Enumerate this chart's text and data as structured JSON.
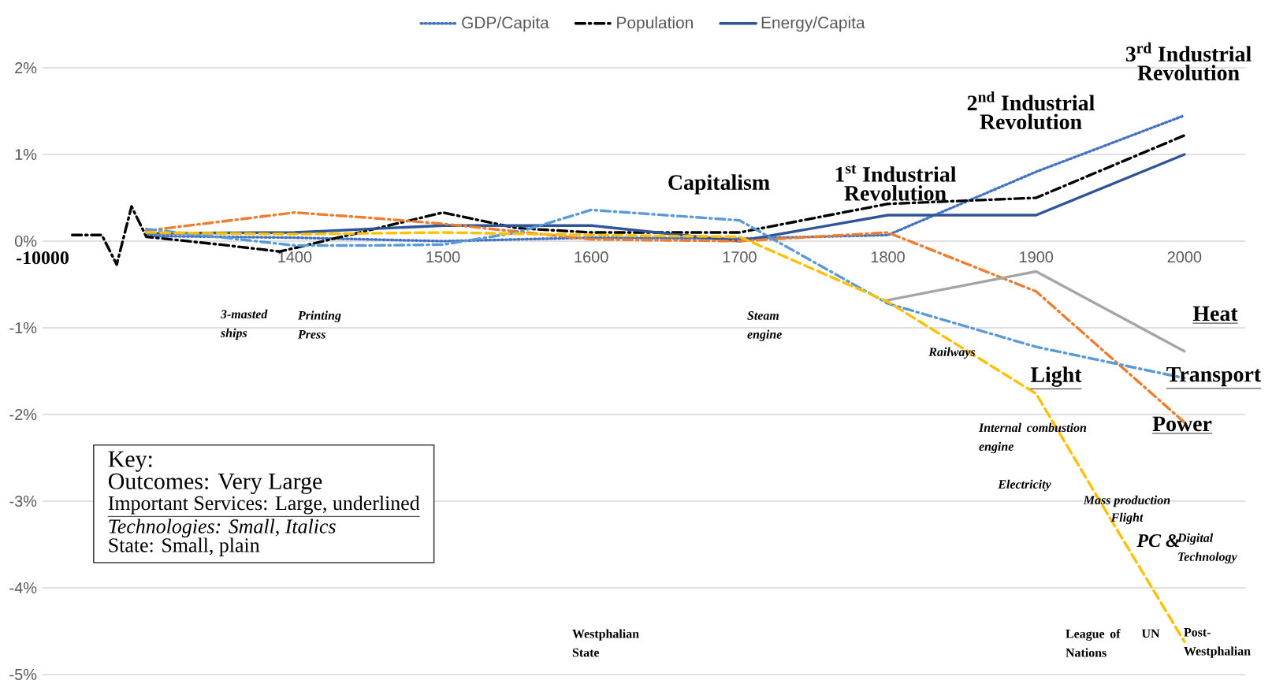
{
  "chart_data": {
    "type": "line",
    "categories": [
      "-10000",
      null,
      null,
      null,
      null,
      null,
      null,
      null,
      null,
      null,
      null,
      null,
      null,
      null,
      null,
      null,
      null,
      "1400",
      null,
      null,
      null,
      null,
      null,
      null,
      null,
      null,
      null,
      "1500",
      null,
      null,
      null,
      null,
      null,
      null,
      null,
      null,
      null,
      "1600",
      null,
      null,
      null,
      null,
      null,
      null,
      null,
      null,
      null,
      "1700",
      null,
      null,
      null,
      null,
      null,
      null,
      null,
      null,
      null,
      "1800",
      null,
      null,
      null,
      null,
      null,
      null,
      null,
      null,
      null,
      "1900",
      null,
      null,
      null,
      null,
      null,
      null,
      null,
      null,
      null,
      "2000"
    ],
    "ylim": [
      -5,
      2
    ],
    "yticks": [
      {
        "value": -5,
        "label": "-5%"
      },
      {
        "value": -4,
        "label": "-4%"
      },
      {
        "value": -3,
        "label": "-3%"
      },
      {
        "value": -2,
        "label": "-2%"
      },
      {
        "value": -1,
        "label": "-1%"
      },
      {
        "value": 0,
        "label": "0%"
      },
      {
        "value": 1,
        "label": "1%"
      },
      {
        "value": 2,
        "label": "2%"
      }
    ],
    "grid": "y",
    "legend": "top",
    "series": [
      {
        "name": "GDP/Capita",
        "color": "#4472c4",
        "line_style": "dotted",
        "values": [
          null,
          null,
          null,
          null,
          null,
          null,
          null,
          0.06,
          null,
          null,
          null,
          null,
          null,
          null,
          null,
          null,
          null,
          0.04,
          null,
          null,
          null,
          null,
          null,
          null,
          null,
          null,
          null,
          0.0,
          null,
          null,
          null,
          null,
          null,
          null,
          null,
          null,
          null,
          0.04,
          null,
          null,
          null,
          null,
          null,
          null,
          null,
          null,
          null,
          0.03,
          null,
          null,
          null,
          null,
          null,
          null,
          null,
          null,
          null,
          0.07,
          null,
          null,
          null,
          null,
          null,
          null,
          null,
          null,
          null,
          0.8,
          null,
          null,
          null,
          null,
          null,
          null,
          null,
          null,
          null,
          1.45
        ]
      },
      {
        "name": "Population",
        "color": "#000000",
        "line_style": "dashdot",
        "values": [
          null,
          null,
          0.07,
          null,
          0.07,
          -0.27,
          0.4,
          0.05,
          null,
          null,
          null,
          null,
          -0.04,
          null,
          null,
          null,
          -0.12,
          null,
          null,
          null,
          null,
          null,
          null,
          null,
          null,
          null,
          null,
          0.33,
          null,
          null,
          null,
          null,
          0.15,
          null,
          null,
          null,
          null,
          0.1,
          null,
          null,
          null,
          null,
          null,
          null,
          null,
          null,
          null,
          0.1,
          null,
          null,
          null,
          null,
          null,
          null,
          null,
          null,
          null,
          0.43,
          null,
          null,
          null,
          null,
          null,
          null,
          null,
          null,
          null,
          0.5,
          null,
          null,
          null,
          null,
          null,
          null,
          null,
          null,
          null,
          1.22
        ]
      },
      {
        "name": "Energy/Capita",
        "color": "#2f5597",
        "line_style": "solid",
        "values": [
          null,
          null,
          null,
          null,
          null,
          null,
          null,
          0.09,
          null,
          null,
          null,
          null,
          null,
          null,
          null,
          null,
          null,
          0.1,
          null,
          null,
          null,
          null,
          null,
          null,
          null,
          null,
          null,
          0.18,
          null,
          null,
          null,
          null,
          null,
          null,
          null,
          null,
          null,
          0.18,
          null,
          null,
          null,
          null,
          null,
          null,
          null,
          null,
          null,
          0.0,
          null,
          null,
          null,
          null,
          null,
          null,
          null,
          null,
          null,
          0.3,
          null,
          null,
          null,
          null,
          null,
          null,
          null,
          null,
          null,
          0.3,
          null,
          null,
          null,
          null,
          null,
          null,
          null,
          null,
          null,
          1.0
        ]
      },
      {
        "color": "#ed7d31",
        "line_style": "dashdot",
        "values": [
          null,
          null,
          null,
          null,
          null,
          null,
          null,
          0.12,
          null,
          null,
          null,
          null,
          null,
          null,
          null,
          null,
          null,
          0.33,
          null,
          null,
          null,
          null,
          0.27,
          null,
          null,
          null,
          null,
          0.2,
          null,
          null,
          null,
          null,
          null,
          null,
          null,
          null,
          null,
          0.02,
          null,
          null,
          null,
          null,
          null,
          null,
          null,
          null,
          null,
          0.0,
          null,
          null,
          null,
          null,
          null,
          null,
          null,
          null,
          null,
          0.1,
          null,
          null,
          null,
          null,
          null,
          null,
          null,
          null,
          null,
          -0.58,
          null,
          null,
          null,
          null,
          null,
          null,
          null,
          null,
          null,
          -2.09
        ]
      },
      {
        "color": "#5b9bd5",
        "line_style": "dashdot",
        "values": [
          null,
          null,
          null,
          null,
          null,
          null,
          null,
          0.14,
          null,
          null,
          null,
          null,
          null,
          null,
          null,
          null,
          null,
          -0.05,
          null,
          null,
          null,
          null,
          -0.05,
          null,
          null,
          null,
          null,
          -0.04,
          null,
          null,
          null,
          null,
          0.1,
          null,
          null,
          null,
          null,
          0.36,
          null,
          null,
          null,
          null,
          null,
          null,
          null,
          null,
          null,
          0.24,
          null,
          null,
          null,
          null,
          null,
          null,
          null,
          null,
          null,
          -0.72,
          null,
          null,
          null,
          null,
          null,
          null,
          null,
          null,
          null,
          -1.22,
          null,
          null,
          null,
          null,
          null,
          null,
          null,
          null,
          null,
          -1.58
        ]
      },
      {
        "color": "#a5a5a5",
        "line_style": "solid",
        "values": [
          null,
          null,
          null,
          null,
          null,
          null,
          null,
          null,
          null,
          null,
          null,
          null,
          null,
          null,
          null,
          null,
          null,
          null,
          null,
          null,
          null,
          null,
          null,
          null,
          null,
          null,
          null,
          null,
          null,
          null,
          null,
          null,
          null,
          null,
          null,
          null,
          null,
          null,
          null,
          null,
          null,
          null,
          null,
          null,
          null,
          null,
          null,
          null,
          null,
          null,
          null,
          null,
          null,
          null,
          null,
          null,
          null,
          -0.68,
          null,
          null,
          null,
          null,
          null,
          null,
          null,
          null,
          null,
          -0.35,
          null,
          null,
          null,
          null,
          null,
          null,
          null,
          null,
          null,
          -1.27
        ]
      },
      {
        "color": "#ffc000",
        "line_style": "dashed",
        "values": [
          null,
          null,
          null,
          null,
          null,
          null,
          null,
          0.1,
          null,
          null,
          null,
          null,
          null,
          null,
          null,
          null,
          null,
          0.08,
          null,
          null,
          null,
          null,
          null,
          null,
          null,
          null,
          null,
          0.1,
          null,
          null,
          null,
          null,
          null,
          null,
          null,
          null,
          null,
          0.07,
          null,
          null,
          null,
          null,
          null,
          null,
          null,
          null,
          null,
          0.05,
          null,
          null,
          null,
          null,
          null,
          null,
          null,
          null,
          null,
          -0.7,
          null,
          null,
          null,
          null,
          null,
          null,
          null,
          null,
          null,
          -1.76,
          null,
          null,
          null,
          null,
          -3.2,
          null,
          null,
          null,
          null,
          -4.62
        ]
      }
    ],
    "annotations": [
      "Capitalism",
      "1$^{st}$ Industrial Revolution",
      "2$^{nd}$ Industrial Revolution",
      "3$^{rd}$ Industrial Revolution",
      "Heat",
      "Transport",
      "Light",
      "Power",
      "3-masted ships",
      "Printing Press",
      "Steam engine",
      "Railways",
      "Internal combustion engine",
      "Electricity",
      "Mass production",
      "Flight",
      "PC &",
      "Digital Technology",
      "Westphalian State",
      "League of Nations",
      "UN",
      "Post-Westphalian",
      "Key:",
      "Outcomes: Very Large",
      "Important Services: Large, underlined",
      "Technologies: Small, Italics",
      "State: Small, plain"
    ]
  }
}
